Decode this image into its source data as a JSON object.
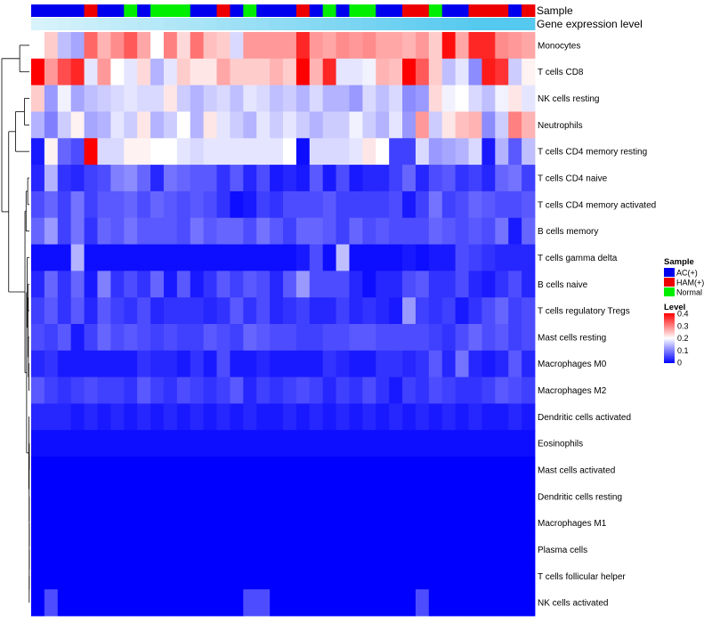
{
  "chart_data": {
    "type": "heatmap",
    "title": "",
    "xlabel": "",
    "ylabel": "",
    "annotation_rows": [
      "Sample",
      "Gene expression level"
    ],
    "row_labels": [
      "Monocytes",
      "T cells CD8",
      "NK cells resting",
      "Neutrophils",
      "T cells CD4 memory resting",
      "T cells CD4 naive",
      "T cells CD4 memory activated",
      "B cells memory",
      "T cells gamma delta",
      "B cells naive",
      "T cells regulatory  Tregs",
      "Mast cells resting",
      "Macrophages M0",
      "Macrophages M2",
      "Dendritic cells activated",
      "Eosinophils",
      "Mast cells activated",
      "Dendritic cells resting",
      "Macrophages M1",
      "Plasma cells",
      "T cells follicular helper",
      "NK cells activated"
    ],
    "sample_groups": [
      "AC",
      "AC",
      "AC",
      "AC",
      "HAM",
      "AC",
      "AC",
      "Normal",
      "AC",
      "Normal",
      "Normal",
      "Normal",
      "AC",
      "AC",
      "HAM",
      "AC",
      "Normal",
      "AC",
      "AC",
      "AC",
      "HAM",
      "AC",
      "Normal",
      "AC",
      "Normal",
      "Normal",
      "AC",
      "AC",
      "HAM",
      "HAM",
      "Normal",
      "AC",
      "AC",
      "HAM",
      "HAM",
      "HAM",
      "AC",
      "HAM"
    ],
    "expression_level": [
      0.0,
      0.03,
      0.06,
      0.09,
      0.12,
      0.15,
      0.18,
      0.21,
      0.24,
      0.27,
      0.3,
      0.33,
      0.36,
      0.39,
      0.42,
      0.45,
      0.48,
      0.51,
      0.54,
      0.57,
      0.6,
      0.63,
      0.66,
      0.69,
      0.72,
      0.75,
      0.78,
      0.81,
      0.84,
      0.87,
      0.9,
      0.93,
      0.96,
      0.99,
      1.0,
      1.0,
      1.0,
      1.0
    ],
    "values": [
      [
        0.2,
        0.24,
        0.15,
        0.13,
        0.32,
        0.26,
        0.29,
        0.33,
        0.27,
        0.2,
        0.3,
        0.23,
        0.31,
        0.25,
        0.24,
        0.17,
        0.28,
        0.28,
        0.28,
        0.28,
        0.37,
        0.28,
        0.27,
        0.29,
        0.28,
        0.29,
        0.27,
        0.27,
        0.26,
        0.28,
        0.24,
        0.39,
        0.27,
        0.37,
        0.37,
        0.29,
        0.28,
        0.27
      ],
      [
        0.4,
        0.28,
        0.34,
        0.37,
        0.18,
        0.28,
        0.2,
        0.18,
        0.23,
        0.14,
        0.18,
        0.24,
        0.22,
        0.22,
        0.27,
        0.24,
        0.24,
        0.24,
        0.26,
        0.24,
        0.4,
        0.26,
        0.37,
        0.18,
        0.18,
        0.19,
        0.26,
        0.25,
        0.4,
        0.33,
        0.24,
        0.15,
        0.18,
        0.11,
        0.38,
        0.36,
        0.16,
        0.21
      ],
      [
        0.24,
        0.12,
        0.19,
        0.13,
        0.15,
        0.16,
        0.17,
        0.18,
        0.17,
        0.17,
        0.22,
        0.16,
        0.14,
        0.16,
        0.17,
        0.15,
        0.18,
        0.17,
        0.15,
        0.16,
        0.14,
        0.17,
        0.14,
        0.14,
        0.12,
        0.17,
        0.15,
        0.17,
        0.11,
        0.12,
        0.23,
        0.19,
        0.2,
        0.17,
        0.15,
        0.19,
        0.22,
        0.18
      ],
      [
        0.14,
        0.1,
        0.16,
        0.21,
        0.13,
        0.14,
        0.18,
        0.16,
        0.22,
        0.14,
        0.16,
        0.2,
        0.14,
        0.22,
        0.18,
        0.16,
        0.14,
        0.18,
        0.16,
        0.18,
        0.16,
        0.14,
        0.16,
        0.16,
        0.19,
        0.16,
        0.14,
        0.18,
        0.12,
        0.28,
        0.16,
        0.22,
        0.25,
        0.26,
        0.11,
        0.16,
        0.3,
        0.26
      ],
      [
        0.02,
        0.21,
        0.08,
        0.06,
        0.4,
        0.17,
        0.17,
        0.21,
        0.21,
        0.2,
        0.2,
        0.18,
        0.17,
        0.18,
        0.18,
        0.18,
        0.18,
        0.18,
        0.18,
        0.2,
        0.01,
        0.17,
        0.17,
        0.17,
        0.18,
        0.22,
        0.2,
        0.05,
        0.05,
        0.17,
        0.12,
        0.13,
        0.14,
        0.17,
        0.02,
        0.14,
        0.07,
        0.15
      ],
      [
        0.03,
        0.14,
        0.04,
        0.03,
        0.05,
        0.06,
        0.1,
        0.11,
        0.08,
        0.03,
        0.09,
        0.08,
        0.07,
        0.07,
        0.04,
        0.07,
        0.03,
        0.06,
        0.02,
        0.03,
        0.02,
        0.07,
        0.02,
        0.06,
        0.02,
        0.03,
        0.03,
        0.05,
        0.08,
        0.03,
        0.06,
        0.07,
        0.04,
        0.05,
        0.03,
        0.08,
        0.09,
        0.05
      ],
      [
        0.06,
        0.08,
        0.05,
        0.09,
        0.05,
        0.07,
        0.07,
        0.08,
        0.06,
        0.08,
        0.07,
        0.06,
        0.07,
        0.06,
        0.04,
        0.01,
        0.02,
        0.05,
        0.04,
        0.06,
        0.06,
        0.06,
        0.07,
        0.05,
        0.05,
        0.05,
        0.05,
        0.06,
        0.02,
        0.05,
        0.09,
        0.05,
        0.06,
        0.08,
        0.07,
        0.06,
        0.06,
        0.07
      ],
      [
        0.08,
        0.12,
        0.05,
        0.09,
        0.04,
        0.08,
        0.07,
        0.09,
        0.07,
        0.07,
        0.07,
        0.06,
        0.09,
        0.07,
        0.08,
        0.08,
        0.06,
        0.09,
        0.07,
        0.05,
        0.08,
        0.08,
        0.07,
        0.05,
        0.08,
        0.06,
        0.07,
        0.06,
        0.06,
        0.06,
        0.08,
        0.07,
        0.06,
        0.07,
        0.06,
        0.09,
        0.02,
        0.08
      ],
      [
        0.01,
        0.01,
        0.01,
        0.14,
        0.01,
        0.01,
        0.01,
        0.01,
        0.01,
        0.01,
        0.01,
        0.01,
        0.01,
        0.01,
        0.01,
        0.01,
        0.01,
        0.01,
        0.01,
        0.01,
        0.02,
        0.06,
        0.01,
        0.15,
        0.01,
        0.01,
        0.01,
        0.01,
        0.02,
        0.01,
        0.02,
        0.02,
        0.06,
        0.05,
        0.04,
        0.03,
        0.03,
        0.03
      ],
      [
        0.03,
        0.08,
        0.04,
        0.08,
        0.02,
        0.1,
        0.04,
        0.06,
        0.04,
        0.08,
        0.02,
        0.07,
        0.02,
        0.04,
        0.07,
        0.05,
        0.07,
        0.06,
        0.03,
        0.07,
        0.12,
        0.06,
        0.06,
        0.06,
        0.03,
        0.01,
        0.03,
        0.03,
        0.06,
        0.07,
        0.04,
        0.04,
        0.06,
        0.03,
        0.02,
        0.04,
        0.06,
        0.03
      ],
      [
        0.05,
        0.07,
        0.04,
        0.07,
        0.03,
        0.07,
        0.05,
        0.04,
        0.06,
        0.03,
        0.04,
        0.04,
        0.04,
        0.03,
        0.04,
        0.07,
        0.04,
        0.06,
        0.03,
        0.04,
        0.05,
        0.03,
        0.03,
        0.05,
        0.03,
        0.04,
        0.03,
        0.02,
        0.12,
        0.05,
        0.04,
        0.05,
        0.02,
        0.04,
        0.06,
        0.08,
        0.05,
        0.06
      ],
      [
        0.06,
        0.05,
        0.07,
        0.02,
        0.05,
        0.08,
        0.06,
        0.07,
        0.06,
        0.05,
        0.06,
        0.05,
        0.05,
        0.07,
        0.06,
        0.05,
        0.08,
        0.07,
        0.06,
        0.06,
        0.05,
        0.05,
        0.06,
        0.06,
        0.07,
        0.07,
        0.06,
        0.06,
        0.06,
        0.06,
        0.05,
        0.04,
        0.06,
        0.08,
        0.06,
        0.07,
        0.05,
        0.06
      ],
      [
        0.03,
        0.04,
        0.02,
        0.02,
        0.02,
        0.02,
        0.02,
        0.02,
        0.04,
        0.03,
        0.03,
        0.02,
        0.04,
        0.02,
        0.06,
        0.02,
        0.02,
        0.03,
        0.02,
        0.02,
        0.02,
        0.02,
        0.04,
        0.03,
        0.02,
        0.02,
        0.04,
        0.04,
        0.03,
        0.04,
        0.07,
        0.03,
        0.09,
        0.03,
        0.02,
        0.03,
        0.07,
        0.03
      ],
      [
        0.07,
        0.05,
        0.04,
        0.05,
        0.06,
        0.05,
        0.05,
        0.04,
        0.07,
        0.05,
        0.04,
        0.06,
        0.05,
        0.04,
        0.05,
        0.07,
        0.03,
        0.05,
        0.04,
        0.05,
        0.06,
        0.05,
        0.03,
        0.05,
        0.04,
        0.06,
        0.04,
        0.02,
        0.05,
        0.04,
        0.06,
        0.05,
        0.04,
        0.04,
        0.05,
        0.07,
        0.06,
        0.05
      ],
      [
        0.03,
        0.03,
        0.03,
        0.02,
        0.03,
        0.02,
        0.03,
        0.02,
        0.03,
        0.02,
        0.03,
        0.02,
        0.03,
        0.02,
        0.03,
        0.02,
        0.03,
        0.02,
        0.02,
        0.03,
        0.02,
        0.03,
        0.02,
        0.03,
        0.02,
        0.03,
        0.02,
        0.03,
        0.02,
        0.03,
        0.02,
        0.03,
        0.02,
        0.03,
        0.02,
        0.02,
        0.03,
        0.02
      ],
      [
        0.01,
        0.01,
        0.01,
        0.01,
        0.01,
        0.01,
        0.01,
        0.01,
        0.01,
        0.01,
        0.01,
        0.01,
        0.01,
        0.01,
        0.01,
        0.01,
        0.01,
        0.01,
        0.01,
        0.01,
        0.01,
        0.01,
        0.01,
        0.01,
        0.01,
        0.01,
        0.01,
        0.01,
        0.01,
        0.01,
        0.01,
        0.01,
        0.01,
        0.01,
        0.01,
        0.01,
        0.01,
        0.01
      ],
      [
        0.0,
        0.0,
        0.0,
        0.0,
        0.0,
        0.0,
        0.0,
        0.0,
        0.0,
        0.0,
        0.0,
        0.0,
        0.0,
        0.0,
        0.0,
        0.0,
        0.0,
        0.0,
        0.0,
        0.0,
        0.0,
        0.0,
        0.0,
        0.0,
        0.0,
        0.0,
        0.0,
        0.0,
        0.0,
        0.0,
        0.0,
        0.0,
        0.0,
        0.0,
        0.0,
        0.0,
        0.0,
        0.0
      ],
      [
        0.0,
        0.0,
        0.0,
        0.0,
        0.0,
        0.0,
        0.0,
        0.0,
        0.0,
        0.0,
        0.0,
        0.0,
        0.0,
        0.0,
        0.0,
        0.0,
        0.0,
        0.0,
        0.0,
        0.0,
        0.0,
        0.0,
        0.0,
        0.0,
        0.0,
        0.0,
        0.0,
        0.0,
        0.0,
        0.0,
        0.0,
        0.0,
        0.0,
        0.0,
        0.0,
        0.0,
        0.0,
        0.0
      ],
      [
        0.0,
        0.0,
        0.0,
        0.0,
        0.0,
        0.0,
        0.0,
        0.0,
        0.0,
        0.0,
        0.0,
        0.0,
        0.0,
        0.0,
        0.0,
        0.0,
        0.0,
        0.0,
        0.0,
        0.0,
        0.0,
        0.0,
        0.0,
        0.0,
        0.0,
        0.0,
        0.0,
        0.0,
        0.0,
        0.0,
        0.0,
        0.0,
        0.0,
        0.0,
        0.0,
        0.0,
        0.0,
        0.0
      ],
      [
        0.0,
        0.0,
        0.0,
        0.0,
        0.0,
        0.0,
        0.0,
        0.0,
        0.0,
        0.0,
        0.0,
        0.0,
        0.0,
        0.0,
        0.0,
        0.0,
        0.0,
        0.0,
        0.0,
        0.0,
        0.0,
        0.0,
        0.0,
        0.0,
        0.0,
        0.0,
        0.0,
        0.0,
        0.0,
        0.0,
        0.0,
        0.0,
        0.0,
        0.0,
        0.0,
        0.0,
        0.0,
        0.0
      ],
      [
        0.0,
        0.0,
        0.0,
        0.0,
        0.0,
        0.0,
        0.0,
        0.0,
        0.0,
        0.0,
        0.0,
        0.0,
        0.0,
        0.0,
        0.0,
        0.0,
        0.0,
        0.0,
        0.0,
        0.0,
        0.0,
        0.0,
        0.0,
        0.0,
        0.0,
        0.0,
        0.0,
        0.0,
        0.0,
        0.0,
        0.0,
        0.0,
        0.0,
        0.0,
        0.0,
        0.0,
        0.0,
        0.0
      ],
      [
        0.0,
        0.06,
        0.0,
        0.0,
        0.0,
        0.0,
        0.0,
        0.0,
        0.0,
        0.0,
        0.0,
        0.0,
        0.0,
        0.0,
        0.0,
        0.0,
        0.06,
        0.06,
        0.0,
        0.0,
        0.0,
        0.0,
        0.0,
        0.0,
        0.0,
        0.0,
        0.0,
        0.0,
        0.0,
        0.06,
        0.0,
        0.0,
        0.0,
        0.0,
        0.0,
        0.0,
        0.0,
        0.0
      ]
    ],
    "colorscale": {
      "range": [
        0,
        0.4
      ],
      "colors": [
        "#0000ff",
        "#ffffff",
        "#ff0000"
      ]
    },
    "legend_sample": {
      "title": "Sample",
      "entries": [
        {
          "key": "AC",
          "label": "AC(+)",
          "color": "#0000ee"
        },
        {
          "key": "HAM",
          "label": "HAM(+)",
          "color": "#ee0000"
        },
        {
          "key": "Normal",
          "label": "Normal",
          "color": "#00ee00"
        }
      ]
    },
    "legend_level": {
      "title": "Level",
      "ticks": [
        0.4,
        0.3,
        0.2,
        0.1,
        0
      ],
      "tick_labels": [
        "0.4",
        "0.3",
        "0.2",
        "0.1",
        "0"
      ]
    },
    "expression_colors": {
      "low": "#d8f3fb",
      "high": "#55c9ef"
    }
  }
}
